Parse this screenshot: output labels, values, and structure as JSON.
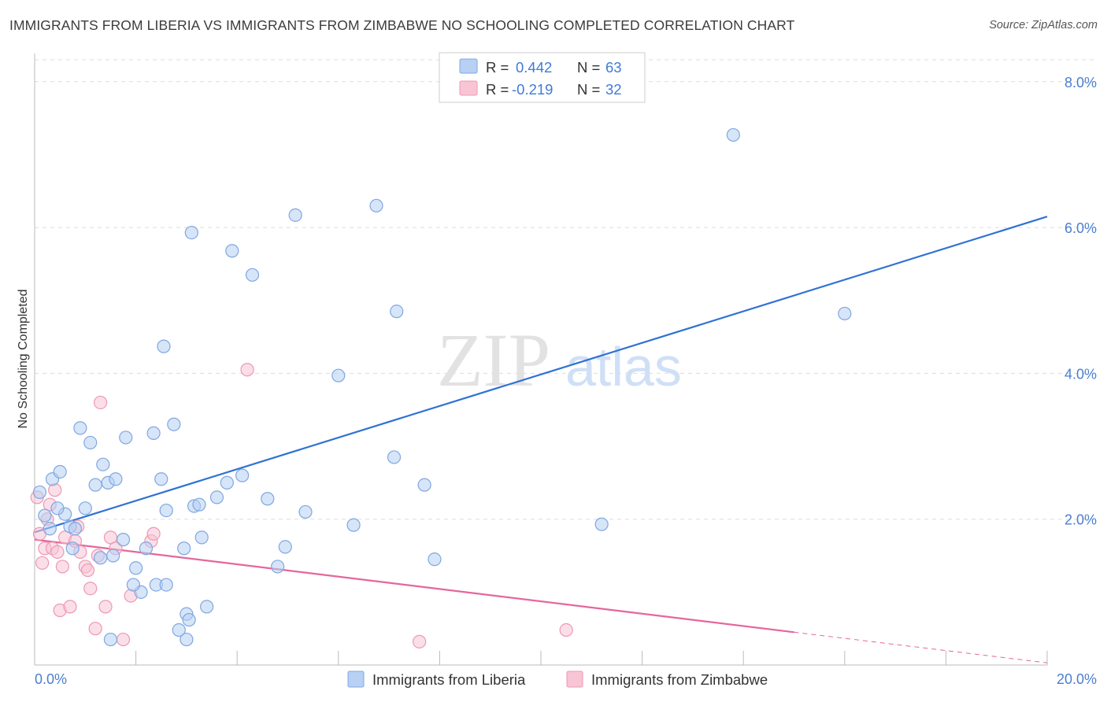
{
  "title": "IMMIGRANTS FROM LIBERIA VS IMMIGRANTS FROM ZIMBABWE NO SCHOOLING COMPLETED CORRELATION CHART",
  "source": "Source: ZipAtlas.com",
  "watermark": {
    "zip": "ZIP",
    "atlas": "atlas"
  },
  "colors": {
    "liberia_fill": "#b7d0f4",
    "liberia_stroke": "#7fa7e0",
    "liberia_line": "#2f72d4",
    "zimbabwe_fill": "#f8c5d5",
    "zimbabwe_stroke": "#ee97b3",
    "zimbabwe_line": "#e4679a",
    "grid": "#dddddd",
    "tick_text": "#4a7fd0"
  },
  "legend": {
    "r_label": "R =",
    "n_label": "N =",
    "series": [
      {
        "name": "Immigrants from Liberia",
        "r": "0.442",
        "n": "63"
      },
      {
        "name": "Immigrants from Zimbabwe",
        "r": "-0.219",
        "n": "32"
      }
    ]
  },
  "chart_data": {
    "type": "scatter",
    "title": "IMMIGRANTS FROM LIBERIA VS IMMIGRANTS FROM ZIMBABWE NO SCHOOLING COMPLETED CORRELATION CHART",
    "xlabel": "",
    "ylabel": "No Schooling Completed",
    "xlim": [
      0,
      20
    ],
    "ylim": [
      0,
      8.3
    ],
    "x_tick_labels": [
      "0.0%",
      "20.0%"
    ],
    "y_ticks": [
      2,
      4,
      6,
      8
    ],
    "y_tick_labels": [
      "2.0%",
      "4.0%",
      "6.0%",
      "8.0%"
    ],
    "grid": true,
    "legend_position": "top-center",
    "series": [
      {
        "name": "Immigrants from Liberia",
        "trend": {
          "x": [
            0,
            20
          ],
          "y": [
            1.82,
            6.15
          ]
        },
        "points": [
          [
            0.1,
            2.37
          ],
          [
            0.2,
            2.05
          ],
          [
            0.35,
            2.55
          ],
          [
            0.5,
            2.65
          ],
          [
            0.6,
            2.07
          ],
          [
            0.7,
            1.9
          ],
          [
            0.3,
            1.87
          ],
          [
            0.45,
            2.15
          ],
          [
            0.8,
            1.87
          ],
          [
            0.75,
            1.6
          ],
          [
            1.0,
            2.15
          ],
          [
            0.9,
            3.25
          ],
          [
            1.1,
            3.05
          ],
          [
            1.2,
            2.47
          ],
          [
            1.35,
            2.75
          ],
          [
            1.45,
            2.5
          ],
          [
            1.6,
            2.55
          ],
          [
            1.3,
            1.47
          ],
          [
            1.55,
            1.5
          ],
          [
            1.75,
            1.72
          ],
          [
            1.8,
            3.12
          ],
          [
            2.0,
            1.33
          ],
          [
            2.1,
            1.0
          ],
          [
            1.95,
            1.1
          ],
          [
            2.2,
            1.6
          ],
          [
            2.35,
            3.18
          ],
          [
            2.4,
            1.1
          ],
          [
            2.5,
            2.55
          ],
          [
            2.55,
            4.37
          ],
          [
            2.6,
            1.1
          ],
          [
            2.6,
            2.12
          ],
          [
            2.75,
            3.3
          ],
          [
            2.85,
            0.48
          ],
          [
            2.95,
            1.6
          ],
          [
            3.0,
            0.7
          ],
          [
            3.05,
            0.62
          ],
          [
            3.15,
            2.18
          ],
          [
            3.25,
            2.2
          ],
          [
            3.0,
            0.35
          ],
          [
            3.1,
            5.93
          ],
          [
            3.3,
            1.75
          ],
          [
            3.4,
            0.8
          ],
          [
            3.6,
            2.3
          ],
          [
            3.8,
            2.5
          ],
          [
            3.9,
            5.68
          ],
          [
            4.1,
            2.6
          ],
          [
            4.3,
            5.35
          ],
          [
            4.6,
            2.28
          ],
          [
            4.8,
            1.35
          ],
          [
            4.95,
            1.62
          ],
          [
            5.15,
            6.17
          ],
          [
            5.35,
            2.1
          ],
          [
            6.0,
            3.97
          ],
          [
            6.3,
            1.92
          ],
          [
            6.75,
            6.3
          ],
          [
            7.1,
            2.85
          ],
          [
            7.15,
            4.85
          ],
          [
            7.7,
            2.47
          ],
          [
            7.9,
            1.45
          ],
          [
            11.2,
            1.93
          ],
          [
            13.8,
            7.27
          ],
          [
            16.0,
            4.82
          ],
          [
            1.5,
            0.35
          ]
        ]
      },
      {
        "name": "Immigrants from Zimbabwe",
        "trend": {
          "x": [
            0,
            15
          ],
          "y": [
            1.72,
            0.45
          ]
        },
        "trend_dashed": {
          "x": [
            15,
            20
          ],
          "y": [
            0.45,
            0.03
          ]
        },
        "points": [
          [
            0.05,
            2.3
          ],
          [
            0.1,
            1.8
          ],
          [
            0.15,
            1.4
          ],
          [
            0.2,
            1.6
          ],
          [
            0.25,
            2.0
          ],
          [
            0.3,
            2.2
          ],
          [
            0.35,
            1.6
          ],
          [
            0.4,
            2.4
          ],
          [
            0.45,
            1.55
          ],
          [
            0.5,
            0.75
          ],
          [
            0.55,
            1.35
          ],
          [
            0.6,
            1.75
          ],
          [
            0.7,
            0.8
          ],
          [
            0.8,
            1.7
          ],
          [
            0.85,
            1.9
          ],
          [
            0.9,
            1.55
          ],
          [
            1.0,
            1.35
          ],
          [
            1.05,
            1.3
          ],
          [
            1.1,
            1.05
          ],
          [
            1.2,
            0.5
          ],
          [
            1.25,
            1.5
          ],
          [
            1.3,
            3.6
          ],
          [
            1.4,
            0.8
          ],
          [
            1.5,
            1.75
          ],
          [
            1.6,
            1.6
          ],
          [
            1.75,
            0.35
          ],
          [
            1.9,
            0.95
          ],
          [
            2.3,
            1.7
          ],
          [
            2.35,
            1.8
          ],
          [
            4.2,
            4.05
          ],
          [
            7.6,
            0.32
          ],
          [
            10.5,
            0.48
          ]
        ]
      }
    ]
  }
}
